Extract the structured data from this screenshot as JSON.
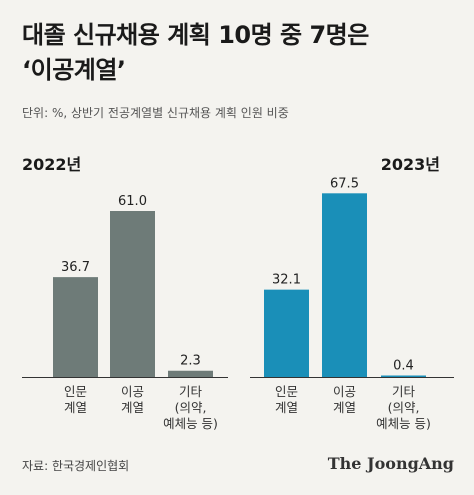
{
  "header": {
    "title_line1": "대졸 신규채용 계획 10명 중 7명은",
    "title_line2": "‘이공계열’",
    "subtitle": "단위: %, 상반기 전공계열별 신규채용 계획 인원 비중"
  },
  "chart_data": [
    {
      "type": "bar",
      "title": "2022년",
      "categories": [
        [
          "인문",
          "계열"
        ],
        [
          "이공",
          "계열"
        ],
        [
          "기타",
          "(의약,",
          "예체능 등)"
        ]
      ],
      "values": [
        36.7,
        61.0,
        2.3
      ],
      "value_labels": [
        "36.7",
        "61.0",
        "2.3"
      ],
      "color": "#6e7b78",
      "ylim": [
        0,
        70
      ]
    },
    {
      "type": "bar",
      "title": "2023년",
      "categories": [
        [
          "인문",
          "계열"
        ],
        [
          "이공",
          "계열"
        ],
        [
          "기타",
          "(의약,",
          "예체능 등)"
        ]
      ],
      "values": [
        32.1,
        67.5,
        0.4
      ],
      "value_labels": [
        "32.1",
        "67.5",
        "0.4"
      ],
      "color": "#1a8fb8",
      "ylim": [
        0,
        70
      ]
    }
  ],
  "footer": {
    "source": "자료: 한국경제인협회",
    "brand": "The JoongAng"
  }
}
